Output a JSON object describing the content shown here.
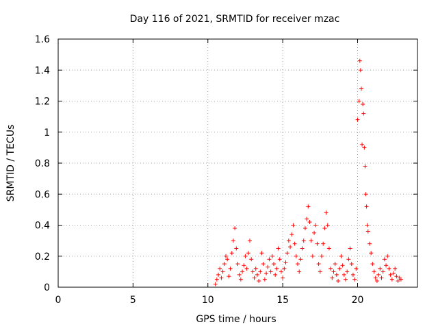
{
  "chart_data": {
    "type": "scatter",
    "title": "Day 116 of 2021, SRMTID for receiver mzac",
    "xlabel": "GPS time / hours",
    "ylabel": "SRMTID / TECUs",
    "xlim": [
      0,
      24
    ],
    "ylim": [
      0,
      1.6
    ],
    "xticks": [
      0,
      5,
      10,
      15,
      20
    ],
    "xtick_labels": [
      "0",
      "5",
      "10",
      "15",
      "20"
    ],
    "yticks": [
      0,
      0.2,
      0.4,
      0.6,
      0.8,
      1.0,
      1.2,
      1.4,
      1.6
    ],
    "ytick_labels": [
      "0",
      "0.2",
      "0.4",
      "0.6",
      "0.8",
      "1",
      "1.2",
      "1.4",
      "1.6"
    ],
    "grid": true,
    "marker": "plus",
    "color": "#ff0000",
    "series": [
      {
        "name": "SRMTID",
        "points": [
          [
            10.5,
            0.02
          ],
          [
            10.6,
            0.05
          ],
          [
            10.7,
            0.08
          ],
          [
            10.8,
            0.12
          ],
          [
            10.9,
            0.06
          ],
          [
            11.0,
            0.1
          ],
          [
            11.1,
            0.15
          ],
          [
            11.2,
            0.2
          ],
          [
            11.3,
            0.18
          ],
          [
            11.4,
            0.07
          ],
          [
            11.5,
            0.12
          ],
          [
            11.6,
            0.22
          ],
          [
            11.7,
            0.3
          ],
          [
            11.8,
            0.38
          ],
          [
            11.9,
            0.25
          ],
          [
            12.0,
            0.15
          ],
          [
            12.1,
            0.08
          ],
          [
            12.2,
            0.05
          ],
          [
            12.3,
            0.1
          ],
          [
            12.4,
            0.14
          ],
          [
            12.5,
            0.2
          ],
          [
            12.6,
            0.12
          ],
          [
            12.7,
            0.22
          ],
          [
            12.8,
            0.3
          ],
          [
            12.9,
            0.18
          ],
          [
            13.0,
            0.1
          ],
          [
            13.1,
            0.06
          ],
          [
            13.2,
            0.12
          ],
          [
            13.3,
            0.08
          ],
          [
            13.4,
            0.04
          ],
          [
            13.5,
            0.1
          ],
          [
            13.6,
            0.22
          ],
          [
            13.7,
            0.15
          ],
          [
            13.8,
            0.05
          ],
          [
            13.9,
            0.09
          ],
          [
            14.0,
            0.13
          ],
          [
            14.1,
            0.18
          ],
          [
            14.2,
            0.1
          ],
          [
            14.3,
            0.2
          ],
          [
            14.4,
            0.15
          ],
          [
            14.5,
            0.08
          ],
          [
            14.6,
            0.12
          ],
          [
            14.7,
            0.25
          ],
          [
            14.8,
            0.18
          ],
          [
            14.9,
            0.1
          ],
          [
            15.0,
            0.06
          ],
          [
            15.1,
            0.12
          ],
          [
            15.2,
            0.16
          ],
          [
            15.3,
            0.22
          ],
          [
            15.4,
            0.3
          ],
          [
            15.5,
            0.26
          ],
          [
            15.6,
            0.34
          ],
          [
            15.7,
            0.4
          ],
          [
            15.8,
            0.28
          ],
          [
            15.9,
            0.2
          ],
          [
            16.0,
            0.15
          ],
          [
            16.1,
            0.1
          ],
          [
            16.2,
            0.18
          ],
          [
            16.3,
            0.25
          ],
          [
            16.4,
            0.3
          ],
          [
            16.5,
            0.38
          ],
          [
            16.6,
            0.44
          ],
          [
            16.7,
            0.52
          ],
          [
            16.8,
            0.42
          ],
          [
            16.9,
            0.3
          ],
          [
            17.0,
            0.2
          ],
          [
            17.1,
            0.35
          ],
          [
            17.2,
            0.4
          ],
          [
            17.3,
            0.28
          ],
          [
            17.4,
            0.15
          ],
          [
            17.5,
            0.1
          ],
          [
            17.6,
            0.2
          ],
          [
            17.7,
            0.28
          ],
          [
            17.8,
            0.38
          ],
          [
            17.9,
            0.48
          ],
          [
            18.0,
            0.4
          ],
          [
            18.1,
            0.25
          ],
          [
            18.2,
            0.12
          ],
          [
            18.3,
            0.06
          ],
          [
            18.4,
            0.1
          ],
          [
            18.5,
            0.15
          ],
          [
            18.6,
            0.08
          ],
          [
            18.7,
            0.04
          ],
          [
            18.8,
            0.12
          ],
          [
            18.9,
            0.2
          ],
          [
            19.0,
            0.14
          ],
          [
            19.1,
            0.08
          ],
          [
            19.2,
            0.05
          ],
          [
            19.3,
            0.1
          ],
          [
            19.4,
            0.18
          ],
          [
            19.5,
            0.25
          ],
          [
            19.6,
            0.15
          ],
          [
            19.7,
            0.08
          ],
          [
            19.8,
            0.05
          ],
          [
            19.9,
            0.12
          ],
          [
            20.0,
            1.08
          ],
          [
            20.1,
            1.2
          ],
          [
            20.15,
            1.46
          ],
          [
            20.2,
            1.4
          ],
          [
            20.25,
            1.28
          ],
          [
            20.3,
            0.92
          ],
          [
            20.35,
            1.18
          ],
          [
            20.4,
            1.12
          ],
          [
            20.45,
            0.9
          ],
          [
            20.5,
            0.78
          ],
          [
            20.55,
            0.6
          ],
          [
            20.6,
            0.52
          ],
          [
            20.65,
            0.4
          ],
          [
            20.7,
            0.36
          ],
          [
            20.8,
            0.28
          ],
          [
            20.9,
            0.22
          ],
          [
            21.0,
            0.15
          ],
          [
            21.1,
            0.1
          ],
          [
            21.2,
            0.06
          ],
          [
            21.3,
            0.04
          ],
          [
            21.4,
            0.08
          ],
          [
            21.5,
            0.12
          ],
          [
            21.6,
            0.06
          ],
          [
            21.7,
            0.1
          ],
          [
            21.8,
            0.18
          ],
          [
            21.9,
            0.14
          ],
          [
            22.0,
            0.2
          ],
          [
            22.1,
            0.12
          ],
          [
            22.2,
            0.08
          ],
          [
            22.3,
            0.05
          ],
          [
            22.4,
            0.09
          ],
          [
            22.5,
            0.12
          ],
          [
            22.6,
            0.07
          ],
          [
            22.7,
            0.04
          ],
          [
            22.8,
            0.06
          ],
          [
            22.9,
            0.05
          ]
        ]
      }
    ]
  }
}
